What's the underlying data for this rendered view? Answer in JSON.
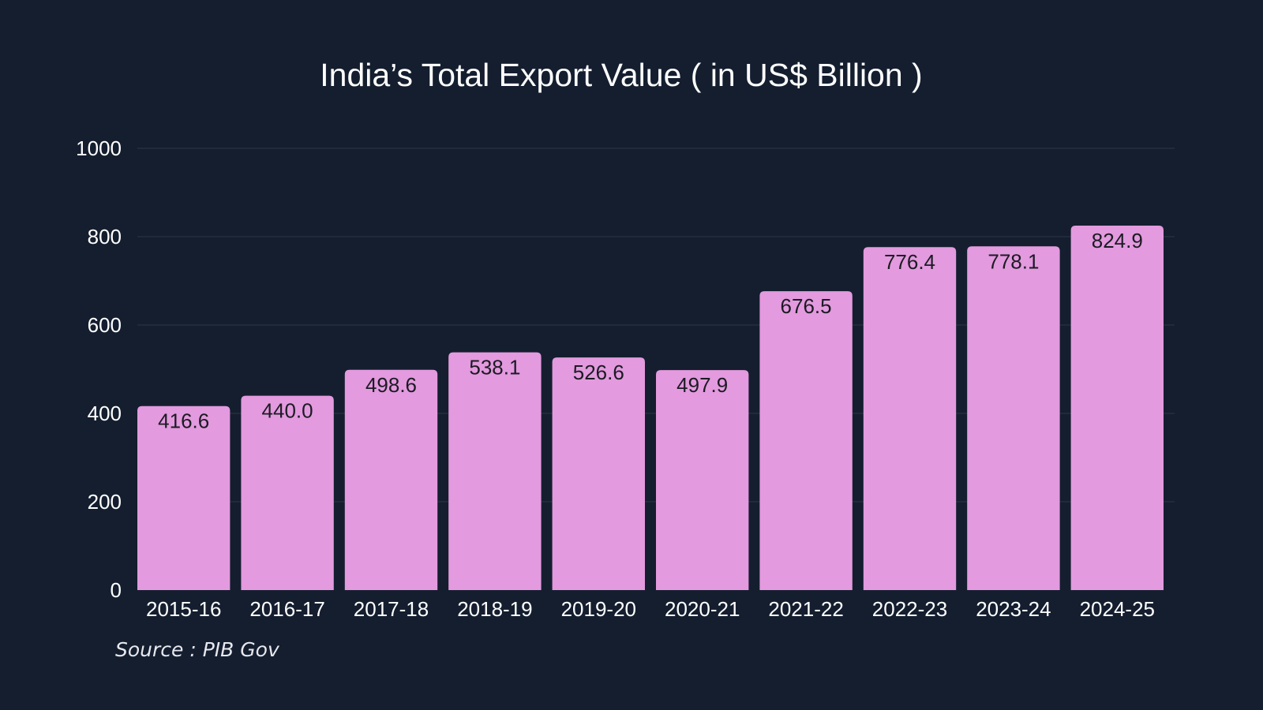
{
  "title": "India’s Total Export Value ( in US$ Billion )",
  "source": "Source : PIB Gov",
  "colors": {
    "background": "#141e2f",
    "bar": "#e39ade",
    "gridline": "#2c3647",
    "text": "#ffffff",
    "value_label": "#1b1b24"
  },
  "chart_data": {
    "type": "bar",
    "title": "India’s Total Export Value ( in US$ Billion )",
    "xlabel": "",
    "ylabel": "",
    "categories": [
      "2015-16",
      "2016-17",
      "2017-18",
      "2018-19",
      "2019-20",
      "2020-21",
      "2021-22",
      "2022-23",
      "2023-24",
      "2024-25"
    ],
    "values": [
      416.6,
      440.0,
      498.6,
      538.1,
      526.6,
      497.9,
      676.5,
      776.4,
      778.1,
      824.9
    ],
    "value_labels": [
      "416.6",
      "440.0",
      "498.6",
      "538.1",
      "526.6",
      "497.9",
      "676.5",
      "776.4",
      "778.1",
      "824.9"
    ],
    "ylim": [
      0,
      1000
    ],
    "yticks": [
      0,
      200,
      400,
      600,
      800,
      1000
    ],
    "grid": true,
    "legend": "none"
  }
}
